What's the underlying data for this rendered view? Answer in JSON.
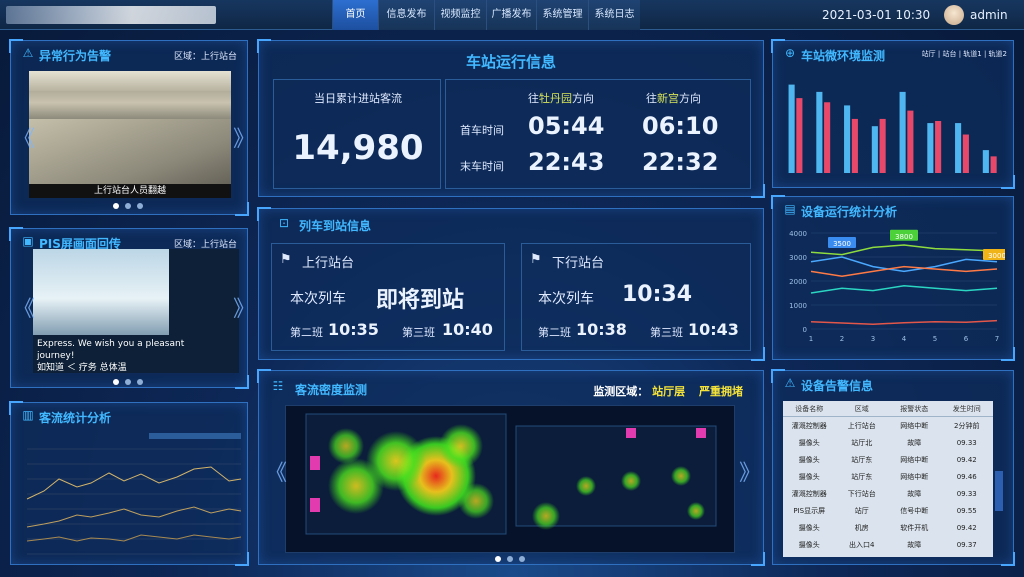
{
  "header": {
    "nav": [
      "首页",
      "信息发布",
      "视频监控",
      "广播发布",
      "系统管理",
      "系统日志"
    ],
    "datetime": "2021-03-01 10:30",
    "user": "admin"
  },
  "alarm_panel": {
    "title": "异常行为告警",
    "area": "区域：上行站台",
    "video_caption": "上行站台人员翻越"
  },
  "pis_panel": {
    "title": "PIS屏画面回传",
    "area": "区域：上行站台",
    "caption_line1": "Express. We wish you a pleasant",
    "caption_line2": "journey!",
    "caption_line3": "如知道 ＜ 疗务 总体温"
  },
  "flow_panel": {
    "title": "客流统计分析"
  },
  "station_info": {
    "title": "车站运行信息",
    "today_label": "当日累计进站客流",
    "today_value": "14,980",
    "dir1": "往牡丹园方向",
    "dir1_prefix": "往",
    "dir1_name": "牡丹园",
    "dir1_suffix": "方向",
    "dir2_prefix": "往",
    "dir2_name": "新宫",
    "dir2_suffix": "方向",
    "first_label": "首车时间",
    "last_label": "末车时间",
    "dir1_first": "05:44",
    "dir1_last": "22:43",
    "dir2_first": "06:10",
    "dir2_last": "22:32"
  },
  "arrival": {
    "title": "列车到站信息",
    "up": {
      "name": "上行站台",
      "current_label": "本次列车",
      "current_value": "即将到站",
      "second_label": "第二班",
      "second_value": "10:35",
      "third_label": "第三班",
      "third_value": "10:40"
    },
    "down": {
      "name": "下行站台",
      "current_label": "本次列车",
      "current_value": "10:34",
      "second_label": "第二班",
      "second_value": "10:38",
      "third_label": "第三班",
      "third_value": "10:43"
    }
  },
  "density": {
    "title": "客流密度监测",
    "region_label": "监测区域：",
    "region_value": "站厅层",
    "status": "严重拥堵"
  },
  "env": {
    "title": "车站微环境监测",
    "legend": "站厅 | 站台 | 轨道1 | 轨道2",
    "chart_data": {
      "type": "bar",
      "series": [
        {
          "name": "blue",
          "values": [
            85,
            78,
            65,
            45,
            78,
            48,
            48,
            22
          ]
        },
        {
          "name": "red",
          "values": [
            72,
            68,
            52,
            52,
            60,
            50,
            37,
            16
          ]
        }
      ]
    }
  },
  "device_stats": {
    "title": "设备运行统计分析",
    "chart_data": {
      "type": "line",
      "x": [
        1,
        2,
        3,
        4,
        5,
        6,
        7
      ],
      "ylim": [
        0,
        4000
      ],
      "yticks": [
        0,
        1000,
        2000,
        3000,
        4000
      ],
      "series": [
        {
          "color": "#4aa8ff",
          "values": [
            2800,
            3000,
            2600,
            2400,
            2600,
            2900,
            2800
          ]
        },
        {
          "color": "#8fdc3f",
          "values": [
            3200,
            3100,
            3400,
            3500,
            3350,
            3300,
            3250
          ]
        },
        {
          "color": "#ff7a45",
          "values": [
            2400,
            2200,
            2400,
            2600,
            2500,
            2400,
            2500
          ]
        },
        {
          "color": "#2bd6c2",
          "values": [
            1500,
            1700,
            1600,
            1800,
            1700,
            1600,
            1700
          ]
        },
        {
          "color": "#e3574a",
          "values": [
            300,
            250,
            200,
            260,
            300,
            280,
            350
          ]
        }
      ],
      "tags": [
        "3500",
        "3800",
        "3000"
      ]
    }
  },
  "device_alarm": {
    "title": "设备告警信息",
    "columns": [
      "设备名称",
      "区域",
      "报警状态",
      "发生时间"
    ],
    "rows": [
      [
        "灌溉控制器",
        "上行站台",
        "网络中断",
        "2分钟前"
      ],
      [
        "摄像头",
        "站厅北",
        "故障",
        "09.33"
      ],
      [
        "摄像头",
        "站厅东",
        "网络中断",
        "09.42"
      ],
      [
        "摄像头",
        "站厅东",
        "网络中断",
        "09.46"
      ],
      [
        "灌溉控制器",
        "下行站台",
        "故障",
        "09.33"
      ],
      [
        "PIS显示屏",
        "站厅",
        "信号中断",
        "09.55"
      ],
      [
        "摄像头",
        "机房",
        "软件开机",
        "09.42"
      ],
      [
        "摄像头",
        "出入口4",
        "故障",
        "09.37"
      ]
    ]
  }
}
